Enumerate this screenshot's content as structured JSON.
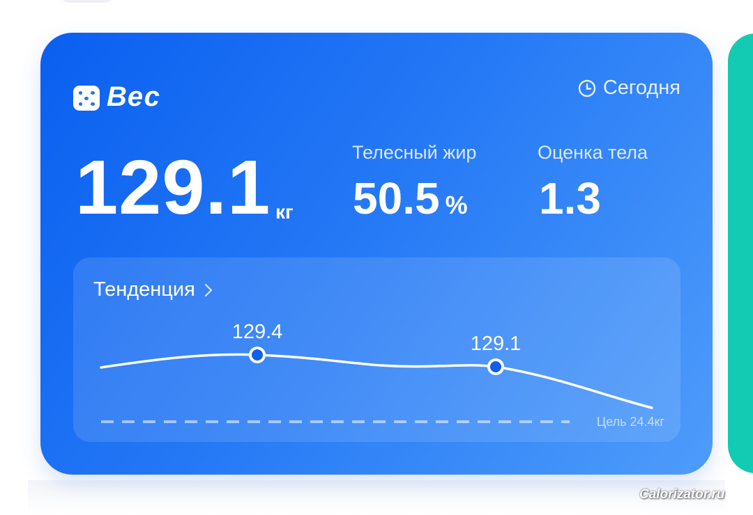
{
  "card": {
    "title": "Вес",
    "date": "Сегодня",
    "weight": {
      "value": "129.1",
      "unit": "кг"
    },
    "body_fat": {
      "label": "Телесный жир",
      "value": "50.5",
      "unit": "%"
    },
    "body_score": {
      "label": "Оценка тела",
      "value": "1.3"
    },
    "trend": {
      "title": "Тенденция"
    }
  },
  "chart_data": {
    "type": "line",
    "title": "Тенденция",
    "xlabel": "",
    "ylabel": "",
    "points": [
      {
        "label": "129.4",
        "value": 129.4
      },
      {
        "label": "129.1",
        "value": 129.1
      }
    ],
    "goal": {
      "label": "Цель 24.4кг",
      "value": 24.4
    },
    "grid": false
  },
  "colors": {
    "card_gradient_start": "#0a5ff0",
    "card_gradient_end": "#4e9cfb",
    "accent_teal": "#13cbb3",
    "point_fill": "#0f5fe8"
  },
  "watermark": "Calorizator.ru"
}
